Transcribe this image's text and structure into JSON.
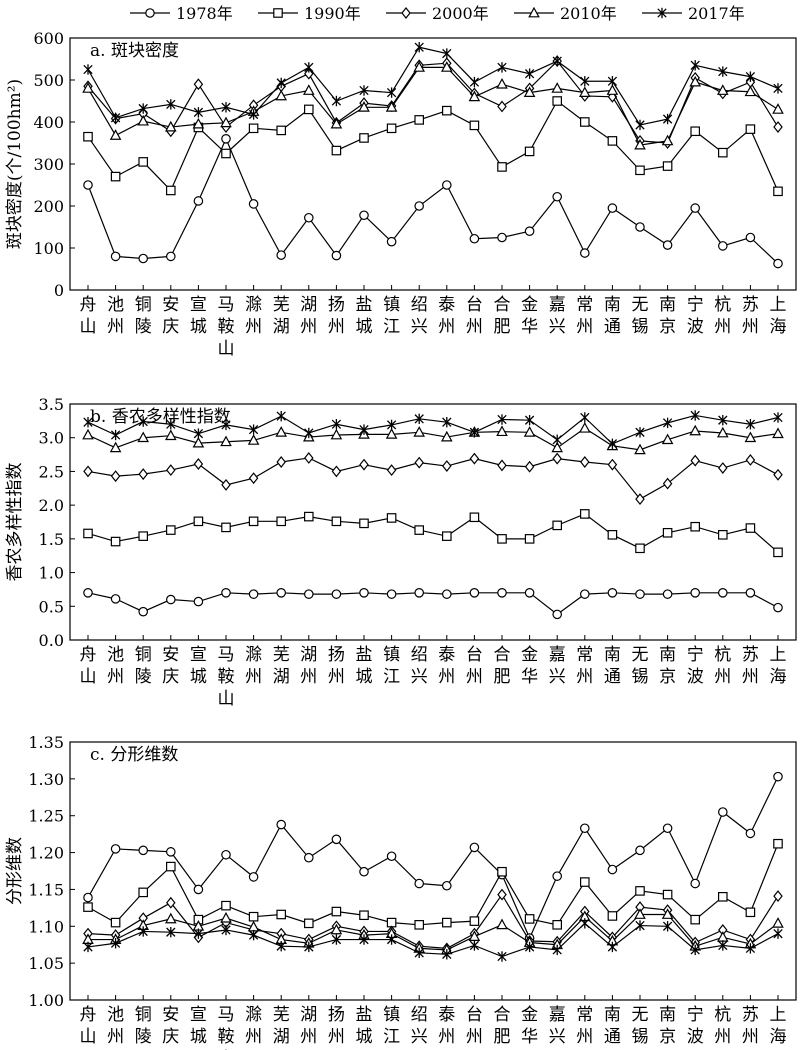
{
  "legend": [
    {
      "name": "1978年",
      "marker": "circle"
    },
    {
      "name": "1990年",
      "marker": "square"
    },
    {
      "name": "2000年",
      "marker": "diamond"
    },
    {
      "name": "2010年",
      "marker": "triangle"
    },
    {
      "name": "2017年",
      "marker": "asterisk"
    }
  ],
  "cities": [
    "舟山",
    "池州",
    "铜陵",
    "安庆",
    "宣城",
    "马鞍山",
    "滁州",
    "芜湖",
    "湖州",
    "扬州",
    "盐城",
    "镇江",
    "绍兴",
    "泰州",
    "台州",
    "合肥",
    "金华",
    "嘉兴",
    "常州",
    "南通",
    "无锡",
    "南京",
    "宁波",
    "杭州",
    "苏州",
    "上海"
  ],
  "chart_data": [
    {
      "type": "line",
      "title": "a. 斑块密度",
      "ylabel": "斑块密度(个/100hm²)",
      "ylim": [
        0,
        600
      ],
      "yticks": [
        "0",
        "100",
        "200",
        "300",
        "400",
        "500",
        "600"
      ],
      "categories": [
        "舟山",
        "池州",
        "铜陵",
        "安庆",
        "宣城",
        "马鞍山",
        "滁州",
        "芜湖",
        "湖州",
        "扬州",
        "盐城",
        "镇江",
        "绍兴",
        "泰州",
        "台州",
        "合肥",
        "金华",
        "嘉兴",
        "常州",
        "南通",
        "无锡",
        "南京",
        "宁波",
        "杭州",
        "苏州",
        "上海"
      ],
      "series": [
        {
          "name": "1978年",
          "values": [
            250,
            80,
            75,
            80,
            212,
            360,
            205,
            83,
            172,
            82,
            178,
            115,
            200,
            250,
            122,
            125,
            140,
            222,
            88,
            195,
            150,
            107,
            195,
            105,
            125,
            63
          ]
        },
        {
          "name": "1990年",
          "values": [
            365,
            270,
            305,
            237,
            387,
            325,
            385,
            380,
            430,
            332,
            362,
            385,
            405,
            427,
            392,
            293,
            330,
            450,
            400,
            355,
            285,
            295,
            378,
            327,
            383,
            235
          ]
        },
        {
          "name": "2000年",
          "values": [
            485,
            408,
            420,
            378,
            490,
            388,
            440,
            485,
            515,
            398,
            445,
            438,
            535,
            540,
            468,
            437,
            480,
            545,
            462,
            460,
            355,
            350,
            505,
            468,
            495,
            388
          ]
        },
        {
          "name": "2010年",
          "values": [
            480,
            368,
            402,
            388,
            395,
            398,
            425,
            462,
            475,
            395,
            435,
            435,
            530,
            530,
            460,
            490,
            470,
            480,
            470,
            475,
            345,
            355,
            495,
            475,
            472,
            430
          ]
        },
        {
          "name": "2017年",
          "values": [
            525,
            410,
            432,
            442,
            423,
            435,
            418,
            493,
            530,
            450,
            475,
            470,
            578,
            563,
            495,
            530,
            515,
            545,
            497,
            497,
            393,
            407,
            535,
            520,
            508,
            480
          ]
        }
      ]
    },
    {
      "type": "line",
      "title": "b. 香农多样性指数",
      "ylabel": "香农多样性指数",
      "ylim": [
        0.0,
        3.5
      ],
      "yticks": [
        "0.0",
        "0.5",
        "1.0",
        "1.5",
        "2.0",
        "2.5",
        "3.0",
        "3.5"
      ],
      "categories": [
        "舟山",
        "池州",
        "铜陵",
        "安庆",
        "宣城",
        "马鞍山",
        "滁州",
        "芜湖",
        "湖州",
        "扬州",
        "盐城",
        "镇江",
        "绍兴",
        "泰州",
        "台州",
        "合肥",
        "金华",
        "嘉兴",
        "常州",
        "南通",
        "无锡",
        "南京",
        "宁波",
        "杭州",
        "苏州",
        "上海"
      ],
      "series": [
        {
          "name": "1978年",
          "values": [
            0.7,
            0.61,
            0.42,
            0.6,
            0.57,
            0.7,
            0.68,
            0.7,
            0.68,
            0.68,
            0.7,
            0.68,
            0.7,
            0.68,
            0.7,
            0.7,
            0.7,
            0.38,
            0.68,
            0.7,
            0.68,
            0.68,
            0.7,
            0.7,
            0.7,
            0.48
          ]
        },
        {
          "name": "1990年",
          "values": [
            1.58,
            1.46,
            1.54,
            1.63,
            1.76,
            1.67,
            1.76,
            1.76,
            1.83,
            1.76,
            1.73,
            1.81,
            1.63,
            1.54,
            1.82,
            1.5,
            1.5,
            1.7,
            1.87,
            1.56,
            1.36,
            1.59,
            1.68,
            1.56,
            1.66,
            1.3
          ]
        },
        {
          "name": "2000年",
          "values": [
            2.5,
            2.43,
            2.46,
            2.52,
            2.61,
            2.3,
            2.4,
            2.64,
            2.7,
            2.5,
            2.6,
            2.52,
            2.63,
            2.58,
            2.69,
            2.59,
            2.57,
            2.69,
            2.64,
            2.6,
            2.09,
            2.32,
            2.66,
            2.55,
            2.67,
            2.45
          ]
        },
        {
          "name": "2010年",
          "values": [
            3.04,
            2.85,
            3.0,
            3.03,
            2.92,
            2.94,
            2.96,
            3.08,
            3.01,
            3.04,
            3.05,
            3.05,
            3.08,
            3.01,
            3.08,
            3.09,
            3.08,
            2.85,
            3.14,
            2.88,
            2.82,
            2.97,
            3.1,
            3.07,
            3.0,
            3.06
          ]
        },
        {
          "name": "2017年",
          "values": [
            3.23,
            3.04,
            3.24,
            3.2,
            3.06,
            3.19,
            3.12,
            3.32,
            3.07,
            3.2,
            3.12,
            3.19,
            3.28,
            3.23,
            3.08,
            3.27,
            3.26,
            2.97,
            3.3,
            2.91,
            3.08,
            3.22,
            3.33,
            3.26,
            3.2,
            3.3
          ]
        }
      ]
    },
    {
      "type": "line",
      "title": "c. 分形维数",
      "ylabel": "分形维数",
      "ylim": [
        1.0,
        1.35
      ],
      "yticks": [
        "1.00",
        "1.05",
        "1.10",
        "1.15",
        "1.20",
        "1.25",
        "1.30",
        "1.35"
      ],
      "categories": [
        "舟山",
        "池州",
        "铜陵",
        "安庆",
        "宣城",
        "马鞍山",
        "滁州",
        "芜湖",
        "湖州",
        "扬州",
        "盐城",
        "镇江",
        "绍兴",
        "泰州",
        "台州",
        "合肥",
        "金华",
        "嘉兴",
        "常州",
        "南通",
        "无锡",
        "南京",
        "宁波",
        "杭州",
        "苏州",
        "上海"
      ],
      "series": [
        {
          "name": "1978年",
          "values": [
            1.139,
            1.205,
            1.203,
            1.201,
            1.15,
            1.197,
            1.167,
            1.238,
            1.193,
            1.218,
            1.174,
            1.195,
            1.158,
            1.155,
            1.207,
            1.17,
            1.084,
            1.168,
            1.233,
            1.177,
            1.203,
            1.233,
            1.158,
            1.255,
            1.226,
            1.303
          ]
        },
        {
          "name": "1990年",
          "values": [
            1.126,
            1.105,
            1.146,
            1.181,
            1.109,
            1.128,
            1.113,
            1.116,
            1.104,
            1.12,
            1.115,
            1.105,
            1.102,
            1.105,
            1.107,
            1.174,
            1.11,
            1.102,
            1.16,
            1.114,
            1.148,
            1.143,
            1.109,
            1.14,
            1.119,
            1.212
          ]
        },
        {
          "name": "2000年",
          "values": [
            1.09,
            1.088,
            1.111,
            1.132,
            1.085,
            1.105,
            1.095,
            1.09,
            1.082,
            1.1,
            1.093,
            1.093,
            1.073,
            1.07,
            1.09,
            1.143,
            1.08,
            1.079,
            1.12,
            1.085,
            1.126,
            1.122,
            1.078,
            1.095,
            1.082,
            1.141
          ]
        },
        {
          "name": "2010年",
          "values": [
            1.082,
            1.082,
            1.101,
            1.11,
            1.1,
            1.111,
            1.099,
            1.082,
            1.077,
            1.095,
            1.088,
            1.09,
            1.07,
            1.068,
            1.086,
            1.102,
            1.078,
            1.075,
            1.113,
            1.08,
            1.116,
            1.116,
            1.073,
            1.085,
            1.076,
            1.104
          ]
        },
        {
          "name": "2017年",
          "values": [
            1.072,
            1.077,
            1.093,
            1.092,
            1.09,
            1.095,
            1.088,
            1.073,
            1.072,
            1.082,
            1.082,
            1.082,
            1.064,
            1.062,
            1.074,
            1.059,
            1.072,
            1.068,
            1.104,
            1.072,
            1.101,
            1.1,
            1.068,
            1.074,
            1.07,
            1.09
          ]
        }
      ]
    }
  ]
}
